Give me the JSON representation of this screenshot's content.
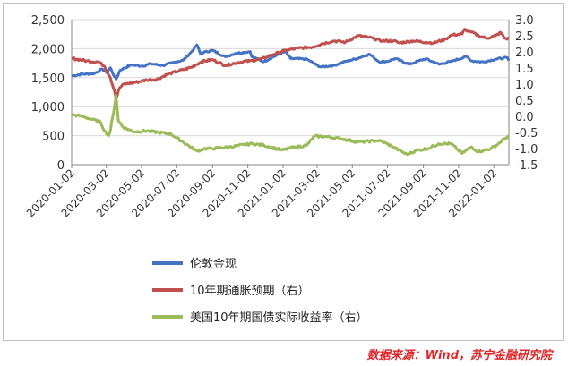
{
  "source_note": "数据来源：Wind，苏宁金融研究院",
  "colors": {
    "gold": "#4472C4",
    "breakeven": "#C0504D",
    "tips": "#9BBB59",
    "source": "#E0262A"
  },
  "chart_data": {
    "type": "line",
    "title": "",
    "left_axis": {
      "min": 0,
      "max": 2500,
      "step": 500,
      "ticks": [
        "0",
        "500",
        "1,000",
        "1,500",
        "2,000",
        "2,500"
      ]
    },
    "right_axis": {
      "min": -1.5,
      "max": 3.0,
      "step": 0.5,
      "ticks": [
        "-1.5",
        "-1.0",
        "-0.5",
        "0.0",
        "0.5",
        "1.0",
        "1.5",
        "2.0",
        "2.5",
        "3.0"
      ]
    },
    "x_ticks": [
      "2020-01-02",
      "2020-03-02",
      "2020-05-02",
      "2020-07-02",
      "2020-09-02",
      "2020-11-02",
      "2021-01-02",
      "2021-03-02",
      "2021-05-02",
      "2021-07-02",
      "2021-09-02",
      "2021-11-02",
      "2022-01-02"
    ],
    "x_range": [
      "2020-01-02",
      "2022-01-28"
    ],
    "grid": "horizontal",
    "legend_position": "bottom",
    "series": [
      {
        "name": "伦敦金现",
        "axis": "left",
        "color": "#4472C4",
        "points": [
          [
            "2020-01-02",
            1530
          ],
          [
            "2020-01-20",
            1560
          ],
          [
            "2020-02-10",
            1570
          ],
          [
            "2020-02-24",
            1650
          ],
          [
            "2020-03-02",
            1590
          ],
          [
            "2020-03-09",
            1670
          ],
          [
            "2020-03-16",
            1520
          ],
          [
            "2020-03-19",
            1475
          ],
          [
            "2020-03-26",
            1630
          ],
          [
            "2020-04-14",
            1720
          ],
          [
            "2020-05-04",
            1700
          ],
          [
            "2020-05-18",
            1740
          ],
          [
            "2020-06-08",
            1710
          ],
          [
            "2020-06-29",
            1770
          ],
          [
            "2020-07-13",
            1800
          ],
          [
            "2020-07-27",
            1940
          ],
          [
            "2020-08-06",
            2065
          ],
          [
            "2020-08-12",
            1910
          ],
          [
            "2020-08-20",
            1945
          ],
          [
            "2020-09-02",
            1970
          ],
          [
            "2020-09-24",
            1860
          ],
          [
            "2020-10-12",
            1920
          ],
          [
            "2020-11-06",
            1950
          ],
          [
            "2020-11-09",
            1860
          ],
          [
            "2020-11-30",
            1775
          ],
          [
            "2020-12-16",
            1860
          ],
          [
            "2021-01-06",
            1950
          ],
          [
            "2021-01-15",
            1830
          ],
          [
            "2021-02-12",
            1820
          ],
          [
            "2021-03-01",
            1720
          ],
          [
            "2021-03-08",
            1685
          ],
          [
            "2021-03-31",
            1710
          ],
          [
            "2021-04-20",
            1780
          ],
          [
            "2021-05-10",
            1830
          ],
          [
            "2021-05-24",
            1880
          ],
          [
            "2021-06-01",
            1905
          ],
          [
            "2021-06-17",
            1775
          ],
          [
            "2021-07-01",
            1780
          ],
          [
            "2021-07-15",
            1830
          ],
          [
            "2021-08-09",
            1730
          ],
          [
            "2021-08-25",
            1790
          ],
          [
            "2021-09-06",
            1825
          ],
          [
            "2021-09-29",
            1730
          ],
          [
            "2021-10-20",
            1780
          ],
          [
            "2021-11-16",
            1865
          ],
          [
            "2021-11-24",
            1790
          ],
          [
            "2021-12-15",
            1770
          ],
          [
            "2022-01-05",
            1820
          ],
          [
            "2022-01-25",
            1845
          ],
          [
            "2022-01-28",
            1795
          ]
        ]
      },
      {
        "name": "10年期通胀预期（右）",
        "axis": "right",
        "color": "#C0504D",
        "points": [
          [
            "2020-01-02",
            1.8
          ],
          [
            "2020-01-28",
            1.72
          ],
          [
            "2020-02-18",
            1.69
          ],
          [
            "2020-02-28",
            1.55
          ],
          [
            "2020-03-09",
            1.2
          ],
          [
            "2020-03-16",
            0.8
          ],
          [
            "2020-03-19",
            0.55
          ],
          [
            "2020-03-25",
            0.88
          ],
          [
            "2020-04-01",
            1.0
          ],
          [
            "2020-04-20",
            1.05
          ],
          [
            "2020-05-11",
            1.13
          ],
          [
            "2020-05-29",
            1.15
          ],
          [
            "2020-06-15",
            1.3
          ],
          [
            "2020-07-06",
            1.41
          ],
          [
            "2020-07-27",
            1.52
          ],
          [
            "2020-08-14",
            1.7
          ],
          [
            "2020-09-02",
            1.76
          ],
          [
            "2020-09-24",
            1.58
          ],
          [
            "2020-10-15",
            1.67
          ],
          [
            "2020-11-06",
            1.72
          ],
          [
            "2020-11-26",
            1.78
          ],
          [
            "2020-12-16",
            1.92
          ],
          [
            "2021-01-05",
            2.04
          ],
          [
            "2021-01-29",
            2.12
          ],
          [
            "2021-02-22",
            2.15
          ],
          [
            "2021-03-10",
            2.25
          ],
          [
            "2021-03-31",
            2.34
          ],
          [
            "2021-04-20",
            2.3
          ],
          [
            "2021-05-12",
            2.5
          ],
          [
            "2021-05-31",
            2.45
          ],
          [
            "2021-06-23",
            2.34
          ],
          [
            "2021-07-12",
            2.34
          ],
          [
            "2021-07-22",
            2.28
          ],
          [
            "2021-08-16",
            2.34
          ],
          [
            "2021-09-06",
            2.3
          ],
          [
            "2021-09-20",
            2.28
          ],
          [
            "2021-10-11",
            2.4
          ],
          [
            "2021-10-20",
            2.52
          ],
          [
            "2021-11-08",
            2.55
          ],
          [
            "2021-11-12",
            2.7
          ],
          [
            "2021-11-23",
            2.62
          ],
          [
            "2021-12-07",
            2.5
          ],
          [
            "2021-12-20",
            2.42
          ],
          [
            "2022-01-05",
            2.5
          ],
          [
            "2022-01-14",
            2.6
          ],
          [
            "2022-01-21",
            2.42
          ],
          [
            "2022-01-28",
            2.4
          ]
        ]
      },
      {
        "name": "美国10年期国债实际收益率（右）",
        "axis": "right",
        "color": "#9BBB59",
        "points": [
          [
            "2020-01-02",
            0.05
          ],
          [
            "2020-01-20",
            0.0
          ],
          [
            "2020-02-07",
            -0.1
          ],
          [
            "2020-02-21",
            -0.18
          ],
          [
            "2020-02-28",
            -0.45
          ],
          [
            "2020-03-06",
            -0.6
          ],
          [
            "2020-03-09",
            -0.45
          ],
          [
            "2020-03-16",
            0.3
          ],
          [
            "2020-03-19",
            0.65
          ],
          [
            "2020-03-23",
            -0.15
          ],
          [
            "2020-04-01",
            -0.35
          ],
          [
            "2020-04-20",
            -0.48
          ],
          [
            "2020-05-11",
            -0.45
          ],
          [
            "2020-06-01",
            -0.5
          ],
          [
            "2020-06-22",
            -0.55
          ],
          [
            "2020-07-13",
            -0.8
          ],
          [
            "2020-08-06",
            -1.08
          ],
          [
            "2020-08-20",
            -1.0
          ],
          [
            "2020-09-02",
            -1.0
          ],
          [
            "2020-10-01",
            -0.95
          ],
          [
            "2020-11-09",
            -0.85
          ],
          [
            "2020-11-30",
            -0.9
          ],
          [
            "2020-12-31",
            -1.05
          ],
          [
            "2021-01-15",
            -0.98
          ],
          [
            "2021-02-12",
            -0.9
          ],
          [
            "2021-02-25",
            -0.62
          ],
          [
            "2021-03-18",
            -0.63
          ],
          [
            "2021-04-15",
            -0.7
          ],
          [
            "2021-05-12",
            -0.8
          ],
          [
            "2021-06-17",
            -0.75
          ],
          [
            "2021-07-01",
            -0.85
          ],
          [
            "2021-07-22",
            -1.05
          ],
          [
            "2021-08-04",
            -1.18
          ],
          [
            "2021-08-23",
            -1.05
          ],
          [
            "2021-09-10",
            -1.0
          ],
          [
            "2021-09-28",
            -0.85
          ],
          [
            "2021-10-20",
            -0.85
          ],
          [
            "2021-11-08",
            -1.15
          ],
          [
            "2021-11-24",
            -0.95
          ],
          [
            "2021-12-06",
            -1.1
          ],
          [
            "2021-12-28",
            -1.0
          ],
          [
            "2022-01-10",
            -0.85
          ],
          [
            "2022-01-20",
            -0.7
          ],
          [
            "2022-01-28",
            -0.6
          ]
        ]
      }
    ]
  }
}
